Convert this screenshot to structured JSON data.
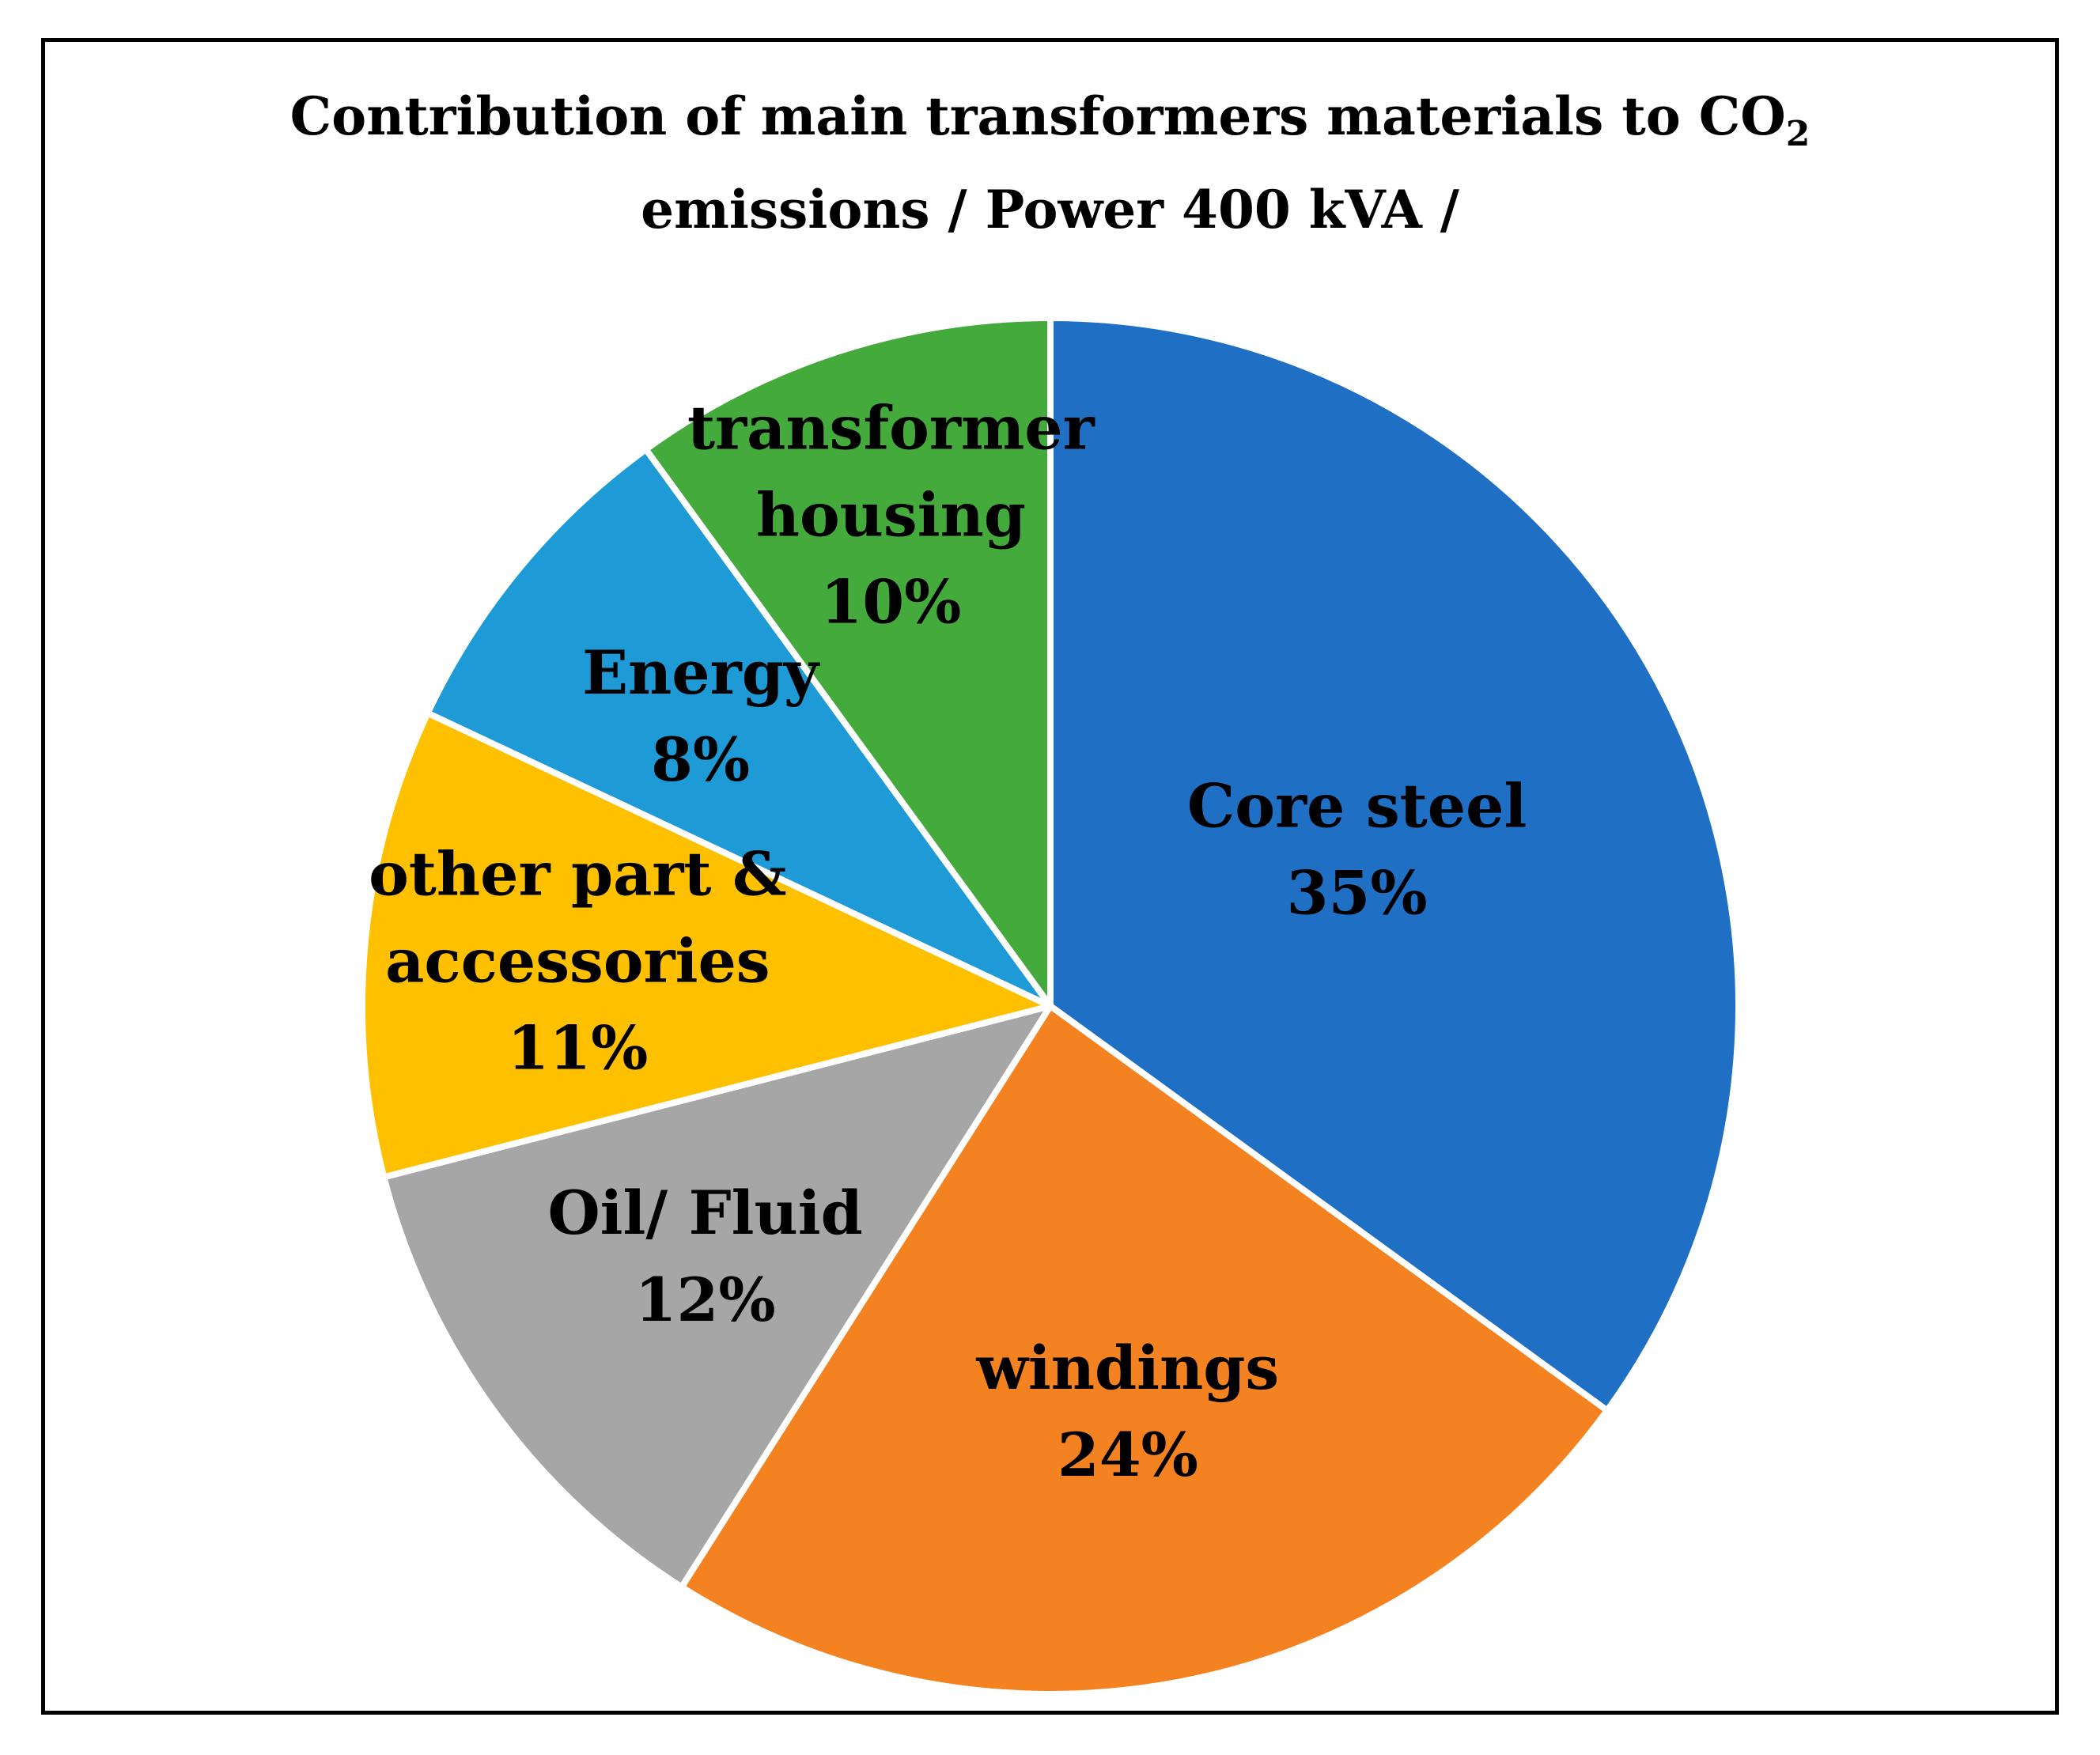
{
  "chart_data": {
    "type": "pie",
    "title_parts": {
      "line1": "Contribution of main transformers materials to CO",
      "subscript": "2",
      "line2": "emissions   / Power 400 kVA  /"
    },
    "start_angle_deg": 0,
    "direction": "clockwise",
    "slices": [
      {
        "label": "Core steel",
        "value": 35,
        "percent_label": "35%",
        "color": "#1F6FC5",
        "label_lines": [
          "Core steel"
        ]
      },
      {
        "label": "windings",
        "value": 24,
        "percent_label": "24%",
        "color": "#F58220",
        "label_lines": [
          "windings"
        ]
      },
      {
        "label": "Oil/ Fluid",
        "value": 12,
        "percent_label": "12%",
        "color": "#A6A6A6",
        "label_lines": [
          "Oil/ Fluid"
        ]
      },
      {
        "label": "other part & accessories",
        "value": 11,
        "percent_label": "11%",
        "color": "#FFC000",
        "label_lines": [
          "other part &",
          "accessories"
        ]
      },
      {
        "label": "Energy",
        "value": 8,
        "percent_label": "8%",
        "color": "#1E9AD6",
        "label_lines": [
          "Energy"
        ]
      },
      {
        "label": "transformer housing",
        "value": 10,
        "percent_label": "10%",
        "color": "#44AA3C",
        "label_lines": [
          "transformer",
          "housing"
        ]
      }
    ],
    "legend": "none",
    "slice_separator_color": "#FFFFFF"
  }
}
